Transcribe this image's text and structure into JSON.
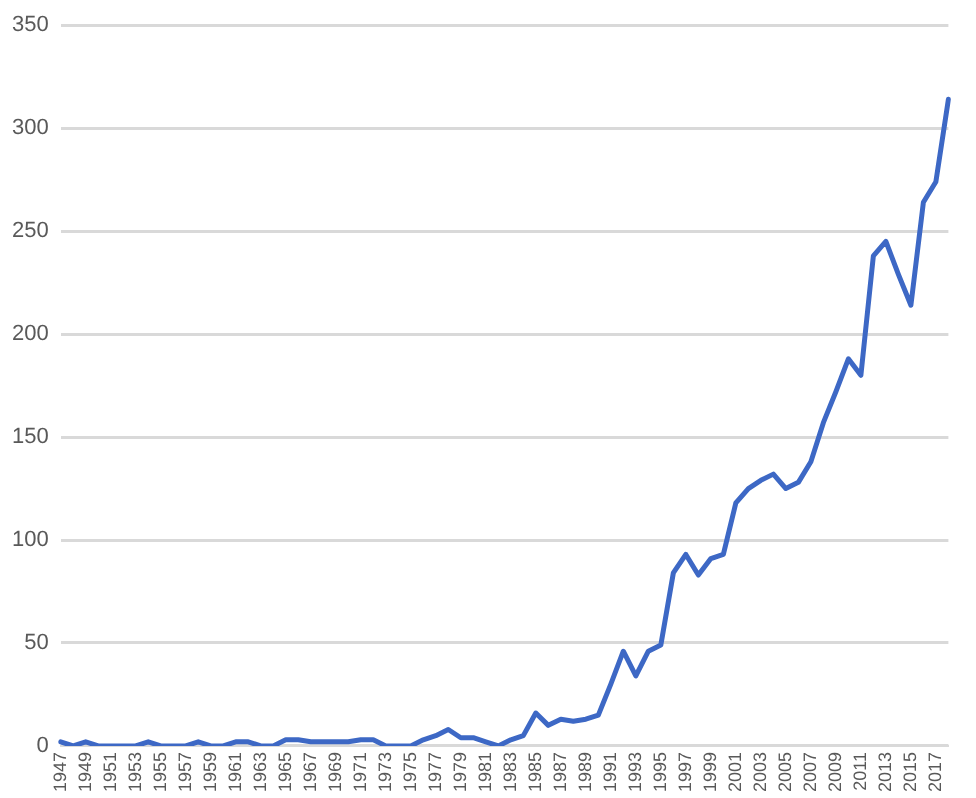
{
  "chart_data": {
    "type": "line",
    "categories": [
      "1947",
      null,
      "1949",
      null,
      "1951",
      null,
      "1953",
      null,
      "1955",
      null,
      "1957",
      null,
      "1959",
      null,
      "1961",
      null,
      "1963",
      null,
      "1965",
      null,
      "1967",
      null,
      "1969",
      null,
      "1971",
      null,
      "1973",
      null,
      "1975",
      null,
      "1977",
      null,
      "1979",
      null,
      "1981",
      null,
      "1983",
      null,
      "1985",
      null,
      "1987",
      null,
      "1989",
      null,
      "1991",
      null,
      "1993",
      null,
      "1995",
      null,
      "1997",
      null,
      "1999",
      null,
      "2001",
      null,
      "2003",
      null,
      "2005",
      null,
      "2007",
      null,
      "2009",
      null,
      "2011",
      null,
      "2013",
      null,
      "2015",
      null,
      "2017",
      null
    ],
    "series": [
      {
        "color": "#3d68c5",
        "values": [
          2,
          0,
          2,
          0,
          0,
          0,
          0,
          2,
          0,
          0,
          0,
          2,
          0,
          0,
          2,
          2,
          0,
          0,
          3,
          3,
          2,
          2,
          2,
          2,
          3,
          3,
          0,
          0,
          0,
          3,
          5,
          8,
          4,
          4,
          2,
          0,
          3,
          5,
          16,
          10,
          13,
          12,
          13,
          15,
          30,
          46,
          34,
          46,
          49,
          84,
          93,
          83,
          91,
          93,
          118,
          125,
          129,
          132,
          125,
          128,
          138,
          157,
          172,
          188,
          180,
          238,
          245,
          229,
          214,
          264,
          274,
          314
        ]
      }
    ],
    "ylim": [
      0,
      350
    ],
    "yticks": [
      0,
      50,
      100,
      150,
      200,
      250,
      300,
      350
    ],
    "grid": "y",
    "legend": false,
    "marker": "none",
    "line_style": "solid"
  }
}
